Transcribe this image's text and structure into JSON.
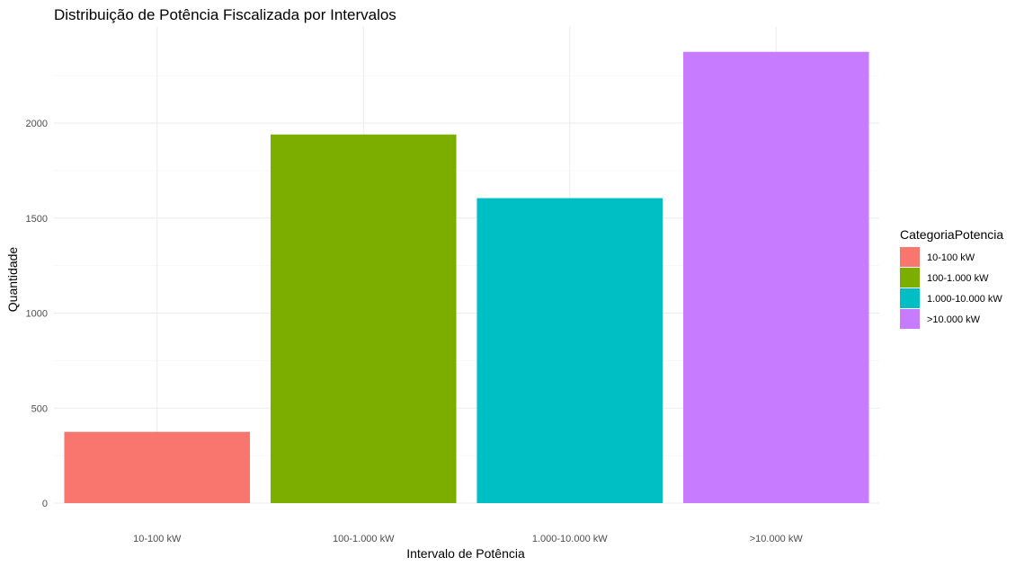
{
  "chart_data": {
    "type": "bar",
    "title": "Distribuição de Potência Fiscalizada por Intervalos",
    "xlabel": "Intervalo de Potência",
    "ylabel": "Quantidade",
    "categories": [
      "10-100 kW",
      "100-1.000 kW",
      "1.000-10.000 kW",
      ">10.000 kW"
    ],
    "values": [
      375,
      1940,
      1605,
      2375
    ],
    "colors": [
      "#F8766D",
      "#7CAE00",
      "#00BFC4",
      "#C77CFF"
    ],
    "ylim": [
      0,
      2500
    ],
    "yticks": [
      0,
      500,
      1000,
      1500,
      2000
    ],
    "grid": true,
    "legend": {
      "title": "CategoriaPotencia",
      "placement": "right",
      "entries": [
        "10-100 kW",
        "100-1.000 kW",
        "1.000-10.000 kW",
        ">10.000 kW"
      ]
    }
  }
}
